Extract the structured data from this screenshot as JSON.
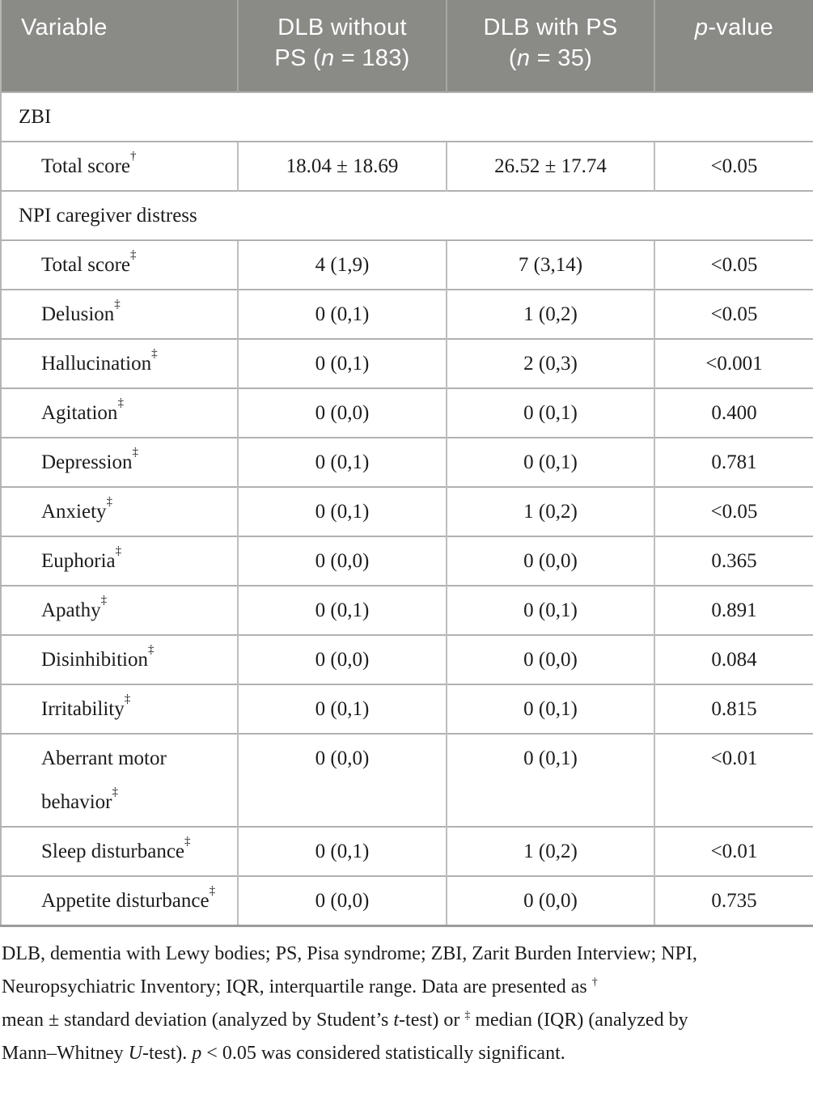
{
  "colors": {
    "header_bg": "#8a8a87",
    "header_text": "#ffffff",
    "body_text": "#1c1c1c",
    "border": "#b2b1b0"
  },
  "header": {
    "col1": "Variable",
    "col2": {
      "line1": "DLB without",
      "line2_pre": "PS (",
      "n": "n",
      "line2_post": " = 183)"
    },
    "col3": {
      "line1": "DLB with PS",
      "line2_pre": "(",
      "n": "n",
      "line2_post": " = 35)"
    },
    "col4": {
      "italic": "p",
      "rest": "-value"
    }
  },
  "rows": [
    {
      "type": "section",
      "label": "ZBI"
    },
    {
      "type": "data",
      "label": "Total score",
      "sup": "†",
      "g1": "18.04 ± 18.69",
      "g2": "26.52 ± 17.74",
      "p": "<0.05"
    },
    {
      "type": "section",
      "label": "NPI caregiver distress"
    },
    {
      "type": "data",
      "label": "Total score",
      "sup": "‡",
      "g1": "4 (1,9)",
      "g2": "7 (3,14)",
      "p": "<0.05"
    },
    {
      "type": "data",
      "label": "Delusion",
      "sup": "‡",
      "g1": "0 (0,1)",
      "g2": "1 (0,2)",
      "p": "<0.05"
    },
    {
      "type": "data",
      "label": "Hallucination",
      "sup": "‡",
      "g1": "0 (0,1)",
      "g2": "2 (0,3)",
      "p": "<0.001"
    },
    {
      "type": "data",
      "label": "Agitation",
      "sup": "‡",
      "g1": "0 (0,0)",
      "g2": "0 (0,1)",
      "p": "0.400"
    },
    {
      "type": "data",
      "label": "Depression",
      "sup": "‡",
      "g1": "0 (0,1)",
      "g2": "0 (0,1)",
      "p": "0.781"
    },
    {
      "type": "data",
      "label": "Anxiety",
      "sup": "‡",
      "g1": "0 (0,1)",
      "g2": "1 (0,2)",
      "p": "<0.05"
    },
    {
      "type": "data",
      "label": "Euphoria",
      "sup": "‡",
      "g1": "0 (0,0)",
      "g2": "0 (0,0)",
      "p": "0.365"
    },
    {
      "type": "data",
      "label": "Apathy",
      "sup": "‡",
      "g1": "0 (0,1)",
      "g2": "0 (0,1)",
      "p": "0.891"
    },
    {
      "type": "data",
      "label": "Disinhibition",
      "sup": "‡",
      "g1": "0 (0,0)",
      "g2": "0 (0,0)",
      "p": "0.084"
    },
    {
      "type": "data",
      "label": "Irritability",
      "sup": "‡",
      "g1": "0 (0,1)",
      "g2": "0 (0,1)",
      "p": "0.815"
    },
    {
      "type": "data",
      "label": "Aberrant motor behavior",
      "sup": "‡",
      "g1": "0 (0,0)",
      "g2": "0 (0,1)",
      "p": "<0.01"
    },
    {
      "type": "data",
      "label": "Sleep disturbance",
      "sup": "‡",
      "g1": "0 (0,1)",
      "g2": "1 (0,2)",
      "p": "<0.01"
    },
    {
      "type": "data",
      "label": "Appetite disturbance",
      "sup": "‡",
      "g1": "0 (0,0)",
      "g2": "0 (0,0)",
      "p": "0.735"
    }
  ],
  "footnote": {
    "segments": [
      {
        "t": "DLB, dementia with Lewy bodies; PS, Pisa syndrome; ZBI, Zarit Burden Interview; NPI,"
      },
      {
        "br": true
      },
      {
        "t": "Neuropsychiatric Inventory; IQR, interquartile range. Data are presented as "
      },
      {
        "t": "†",
        "sup": true
      },
      {
        "br": true
      },
      {
        "t": "mean ± standard deviation (analyzed by Student’s "
      },
      {
        "t": "t",
        "i": true
      },
      {
        "t": "-test) or "
      },
      {
        "t": "‡",
        "sup": true
      },
      {
        "t": " median (IQR) (analyzed by"
      },
      {
        "br": true
      },
      {
        "t": "Mann–Whitney "
      },
      {
        "t": "U",
        "i": true
      },
      {
        "t": "-test). "
      },
      {
        "t": "p",
        "i": true
      },
      {
        "t": " < 0.05 was considered statistically significant."
      }
    ]
  }
}
